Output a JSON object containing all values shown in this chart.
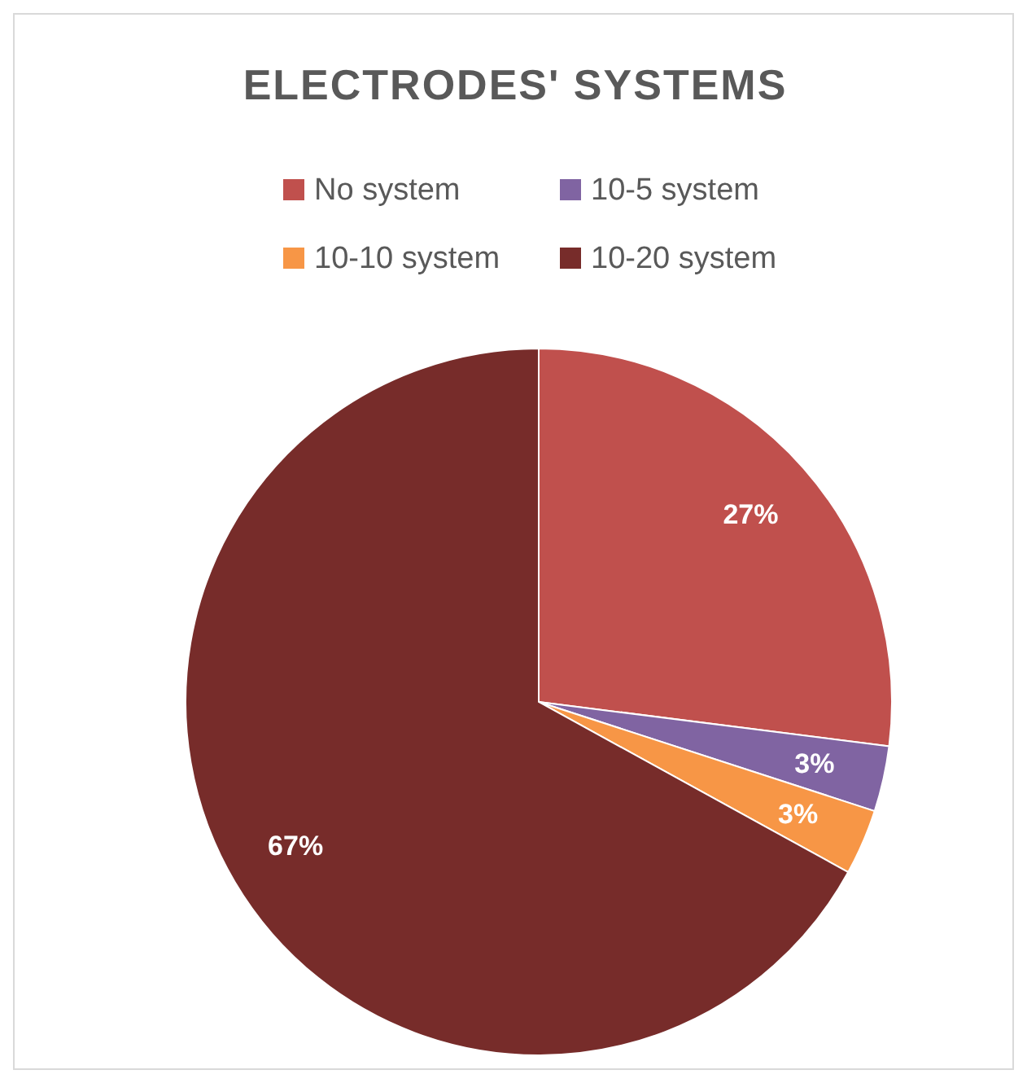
{
  "chart_data": {
    "type": "pie",
    "title": "ELECTRODES' SYSTEMS",
    "categories": [
      "No system",
      "10-5 system",
      "10-10 system",
      "10-20 system"
    ],
    "values": [
      27,
      3,
      3,
      67
    ],
    "colors": [
      "#c0504d",
      "#8064a2",
      "#f79646",
      "#772c2a"
    ],
    "value_labels": [
      "27%",
      "3%",
      "3%",
      "67%"
    ],
    "legend": "top"
  }
}
